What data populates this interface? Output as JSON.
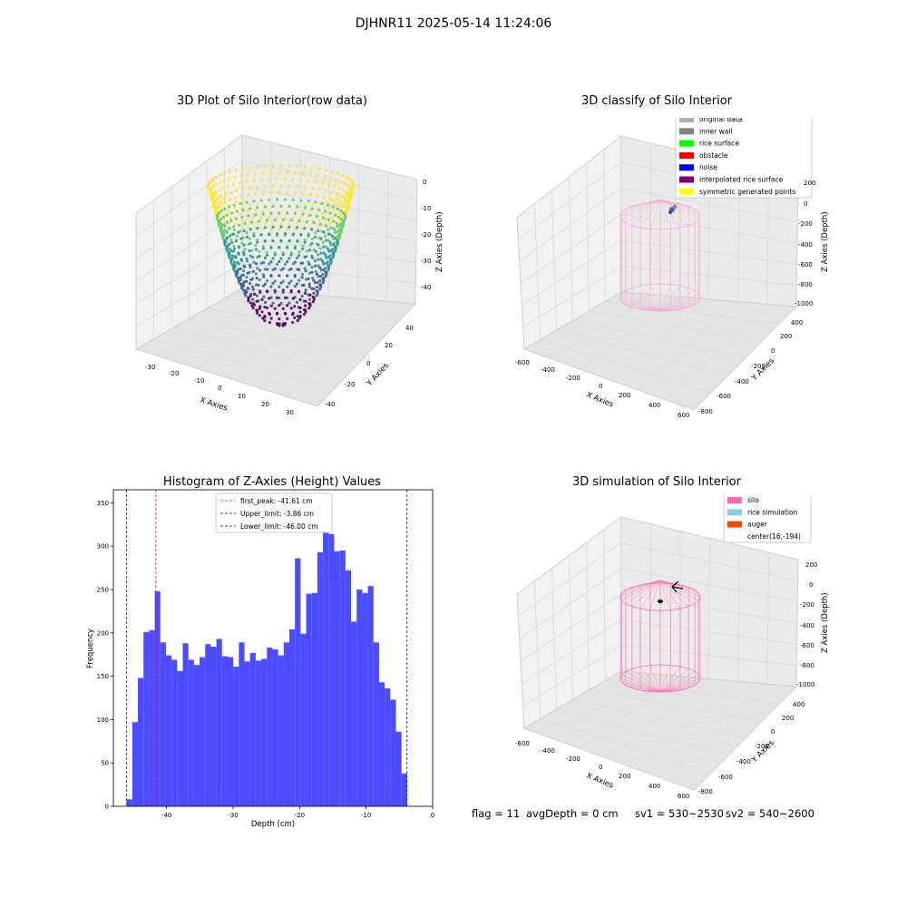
{
  "figure_title": "DJHNR11 2025-05-14 11:24:06",
  "panels": {
    "raw": {
      "title": "3D Plot of Silo Interior(row data)",
      "xlabel": "X Axies",
      "ylabel": "Y Axies",
      "zlabel": "Z Axies (Depth)",
      "xticks": [
        "-30",
        "-20",
        "-10",
        "0",
        "10",
        "20",
        "30"
      ],
      "yticks": [
        "-40",
        "-20",
        "0",
        "20",
        "40"
      ],
      "zticks": [
        "0",
        "-10",
        "-20",
        "-30",
        "-40"
      ]
    },
    "classify": {
      "title": "3D classify of Silo Interior",
      "xlabel": "X Axies",
      "ylabel": "Y Axies",
      "zlabel": "Z Axies (Depth)",
      "xticks": [
        "-600",
        "-400",
        "-200",
        "0",
        "200",
        "400",
        "600"
      ],
      "yticks": [
        "-800",
        "-600",
        "-400",
        "-200",
        "0",
        "200",
        "400"
      ],
      "zticks": [
        "200",
        "0",
        "-200",
        "-400",
        "-600",
        "-800",
        "-1000"
      ],
      "legend": [
        {
          "label": "original data",
          "color": "#b0b0b0"
        },
        {
          "label": "inner wall",
          "color": "#808080"
        },
        {
          "label": "rice surface",
          "color": "#00ff00"
        },
        {
          "label": "obstacle",
          "color": "#ff0000"
        },
        {
          "label": "noise",
          "color": "#0000ff"
        },
        {
          "label": "interpolated rice surface",
          "color": "#800080"
        },
        {
          "label": "symmetric generated points",
          "color": "#ffff00"
        }
      ]
    },
    "simulation": {
      "title": "3D simulation of Silo Interior",
      "xlabel": "X Axies",
      "ylabel": "Y Axies",
      "zlabel": "Z Axies (Depth)",
      "xticks": [
        "-600",
        "-400",
        "-200",
        "0",
        "200",
        "400",
        "600"
      ],
      "yticks": [
        "-800",
        "-600",
        "-400",
        "-200",
        "0",
        "200",
        "400"
      ],
      "zticks": [
        "200",
        "0",
        "-200",
        "-400",
        "-600",
        "-800",
        "-1000"
      ],
      "legend": [
        {
          "label": "silo",
          "color": "#ff69b4"
        },
        {
          "label": "rice simulation",
          "color": "#87ceeb"
        },
        {
          "label": "auger",
          "color": "#ff4500"
        },
        {
          "label": "center(16,-194)",
          "color": ""
        }
      ]
    }
  },
  "footer": {
    "flag": "flag = 11",
    "avg_depth": "avgDepth = 0 cm",
    "sv1": "sv1 = 530~2530",
    "sv2": "sv2 = 540~2600"
  },
  "chart_data": [
    {
      "type": "bar",
      "title": "Histogram of Z-Axies (Height) Values",
      "xlabel": "Depth (cm)",
      "ylabel": "Frequency",
      "xlim": [
        -48,
        0
      ],
      "ylim": [
        0,
        365
      ],
      "xticks": [
        -40,
        -30,
        -20,
        -10,
        0
      ],
      "yticks": [
        0,
        50,
        100,
        150,
        200,
        250,
        300,
        350
      ],
      "bin_start": -46,
      "bin_width": 0.8433,
      "values": [
        8,
        97,
        148,
        201,
        203,
        248,
        189,
        174,
        169,
        156,
        188,
        169,
        163,
        172,
        187,
        184,
        193,
        173,
        172,
        161,
        189,
        167,
        177,
        168,
        170,
        183,
        181,
        174,
        189,
        204,
        286,
        199,
        245,
        246,
        293,
        348,
        314,
        294,
        295,
        272,
        213,
        250,
        246,
        254,
        189,
        143,
        136,
        123,
        86,
        38
      ],
      "color": "#4b4bff",
      "lines": [
        {
          "label": "first_peak: -41.61 cm",
          "x": -41.61,
          "color": "#ff0000"
        },
        {
          "label": "Upper_limit: -3.86 cm",
          "x": -3.86,
          "color": "#0000ff"
        },
        {
          "label": "Lower_limit: -46.00 cm",
          "x": -46.0,
          "color": "#0000ff"
        }
      ],
      "legend_position": "top-center"
    }
  ]
}
